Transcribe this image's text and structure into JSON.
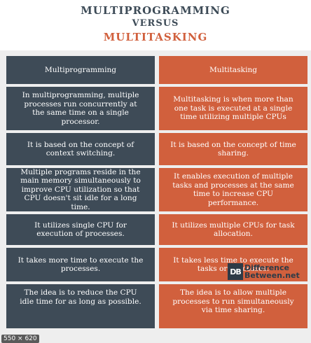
{
  "header": {
    "line1": "MULTIPROGRAMMING",
    "line2": "VERSUS",
    "line3": "MULTITASKING"
  },
  "table": {
    "columns": [
      "Multiprogramming",
      "Multitasking"
    ],
    "rows": [
      [
        "In multiprogramming, multiple processes run concurrently at the same time on a single processor.",
        "Multitasking is when more than one task is executed at a single time utilizing multiple CPUs"
      ],
      [
        "It is based on the concept of context switching.",
        "It is based on the concept of time sharing."
      ],
      [
        "Multiple programs reside in the main memory simultaneously to improve CPU utilization so that CPU doesn't sit idle for a long time.",
        "It enables execution of multiple tasks and processes at the same time to increase CPU performance."
      ],
      [
        "It utilizes single CPU for execution of processes.",
        "It utilizes multiple CPUs for task allocation."
      ],
      [
        "It takes more time to execute the processes.",
        "It takes less time to execute the tasks or processes."
      ],
      [
        "The idea is to reduce the CPU idle time for as long as possible.",
        "The idea is to allow multiple processes to run simultaneously via time sharing."
      ]
    ]
  },
  "logo": {
    "mark": "DB",
    "line1": "Difference",
    "line2": "Between.net"
  },
  "image_size_label": "550 × 620",
  "colors": {
    "left_column": "#3e4b57",
    "right_column": "#d1603d",
    "title_dark": "#3d4b57",
    "title_accent": "#d1603d"
  }
}
